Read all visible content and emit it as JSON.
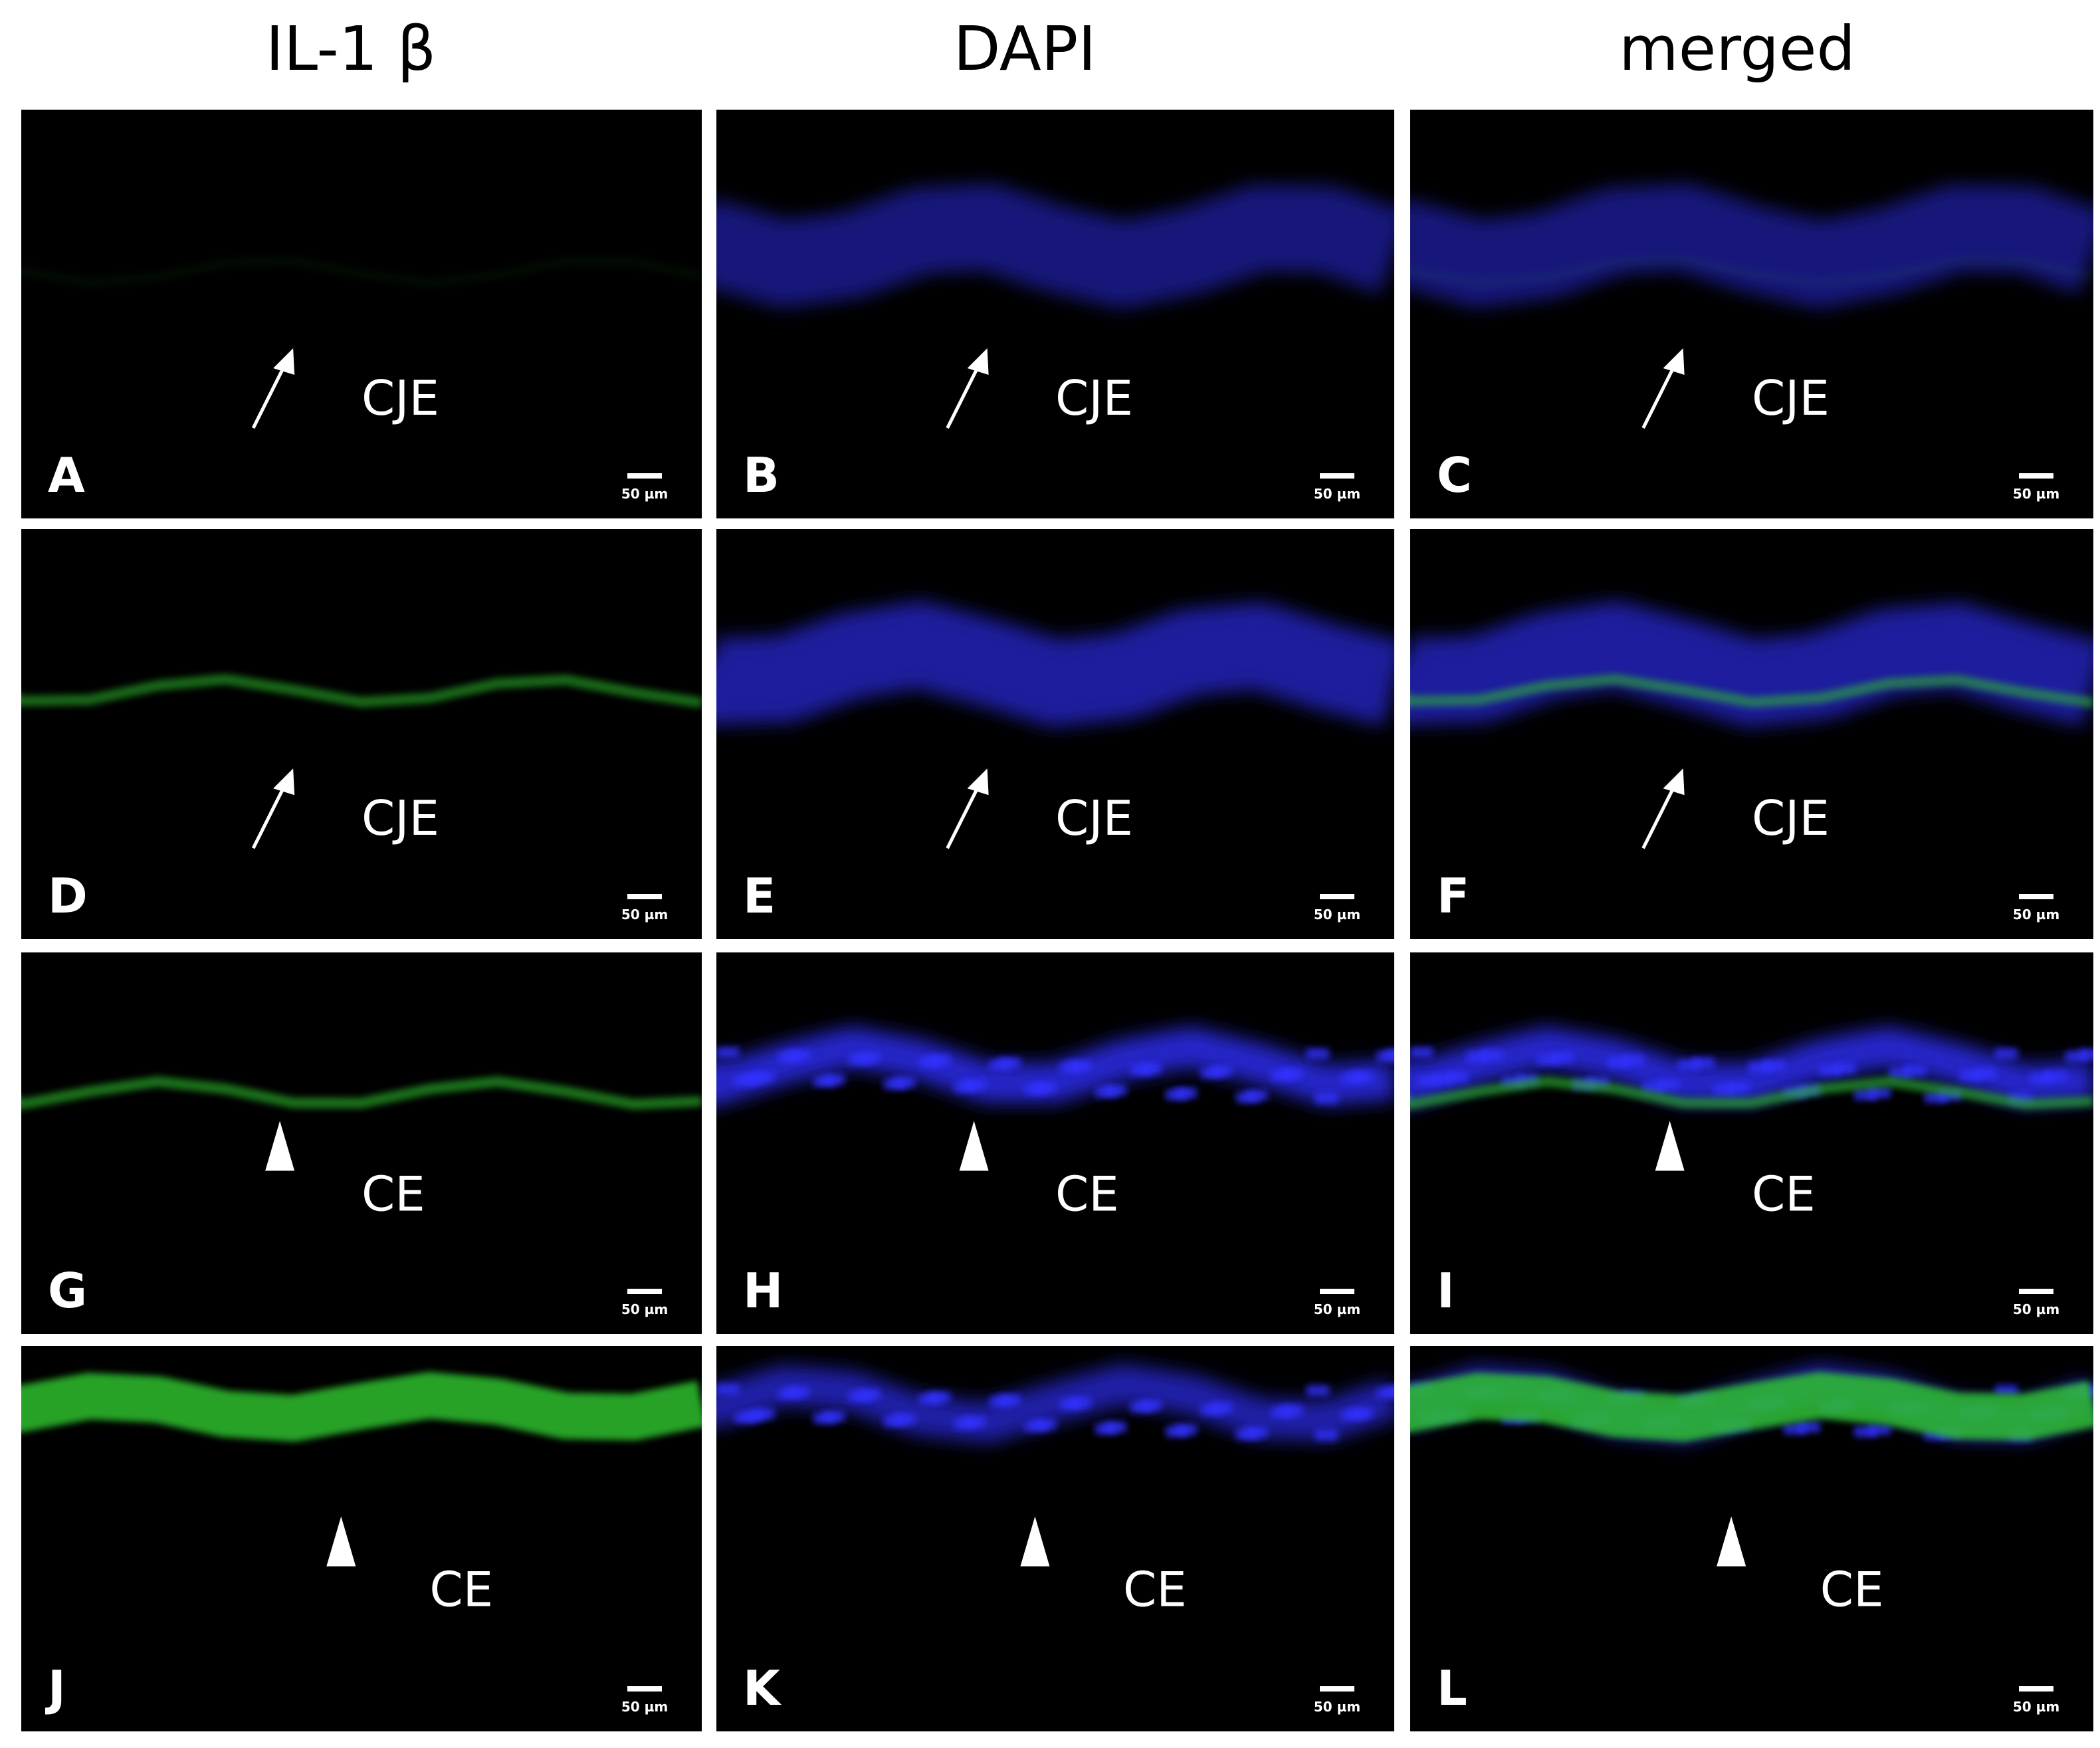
{
  "header": {
    "columns": [
      "IL-1 β",
      "DAPI",
      "merged"
    ]
  },
  "panels": [
    {
      "letter": "A",
      "label": "CJE",
      "scale_bar": "50 µm"
    },
    {
      "letter": "B",
      "label": "CJE",
      "scale_bar": "50 µm"
    },
    {
      "letter": "C",
      "label": "CJE",
      "scale_bar": "50 µm"
    },
    {
      "letter": "D",
      "label": "CJE",
      "scale_bar": "50 µm"
    },
    {
      "letter": "E",
      "label": "CJE",
      "scale_bar": "50 µm"
    },
    {
      "letter": "F",
      "label": "CJE",
      "scale_bar": "50 µm"
    },
    {
      "letter": "G",
      "label": "CE",
      "scale_bar": "50 µm"
    },
    {
      "letter": "H",
      "label": "CE",
      "scale_bar": "50 µm"
    },
    {
      "letter": "I",
      "label": "CE",
      "scale_bar": "50 µm"
    },
    {
      "letter": "J",
      "label": "CE",
      "scale_bar": "50 µm"
    },
    {
      "letter": "K",
      "label": "CE",
      "scale_bar": "50 µm"
    },
    {
      "letter": "L",
      "label": "CE",
      "scale_bar": "50 µm"
    }
  ]
}
